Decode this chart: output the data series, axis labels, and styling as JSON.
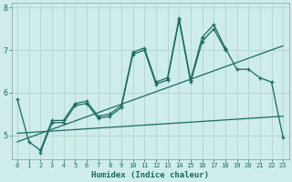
{
  "title": "",
  "xlabel": "Humidex (Indice chaleur)",
  "background_color": "#cdecea",
  "grid_color": "#b8d8d5",
  "line_color": "#1a6b60",
  "xlim": [
    -0.5,
    23.5
  ],
  "ylim": [
    4.45,
    8.1
  ],
  "yticks": [
    5,
    6,
    7,
    8
  ],
  "xticks": [
    0,
    1,
    2,
    3,
    4,
    5,
    6,
    7,
    8,
    9,
    10,
    11,
    12,
    13,
    14,
    15,
    16,
    17,
    18,
    19,
    20,
    21,
    22,
    23
  ],
  "series": [
    {
      "x": [
        0,
        1,
        2,
        3,
        4,
        5,
        6,
        7,
        8,
        9,
        10,
        11,
        12,
        13,
        14,
        15,
        16,
        17,
        18,
        19,
        20,
        21,
        22,
        23
      ],
      "y": [
        5.85,
        4.85,
        4.65,
        5.35,
        5.35,
        5.75,
        5.8,
        5.45,
        5.5,
        5.7,
        6.95,
        7.05,
        6.25,
        6.35,
        7.75,
        6.3,
        7.3,
        7.6,
        7.05,
        6.55,
        6.55,
        6.35,
        6.25,
        4.95
      ],
      "marker": true
    },
    {
      "x": [
        2,
        3,
        4,
        5,
        6,
        7,
        8,
        9,
        10,
        11,
        12,
        13,
        14,
        15,
        16,
        17,
        18
      ],
      "y": [
        4.6,
        5.3,
        5.3,
        5.7,
        5.75,
        5.4,
        5.45,
        5.65,
        6.9,
        7.0,
        6.2,
        6.3,
        7.7,
        6.25,
        7.2,
        7.5,
        7.0
      ],
      "marker": true
    },
    {
      "x": [
        0,
        23
      ],
      "y": [
        4.85,
        7.1
      ],
      "marker": false
    },
    {
      "x": [
        0,
        23
      ],
      "y": [
        5.05,
        5.45
      ],
      "marker": false
    }
  ]
}
